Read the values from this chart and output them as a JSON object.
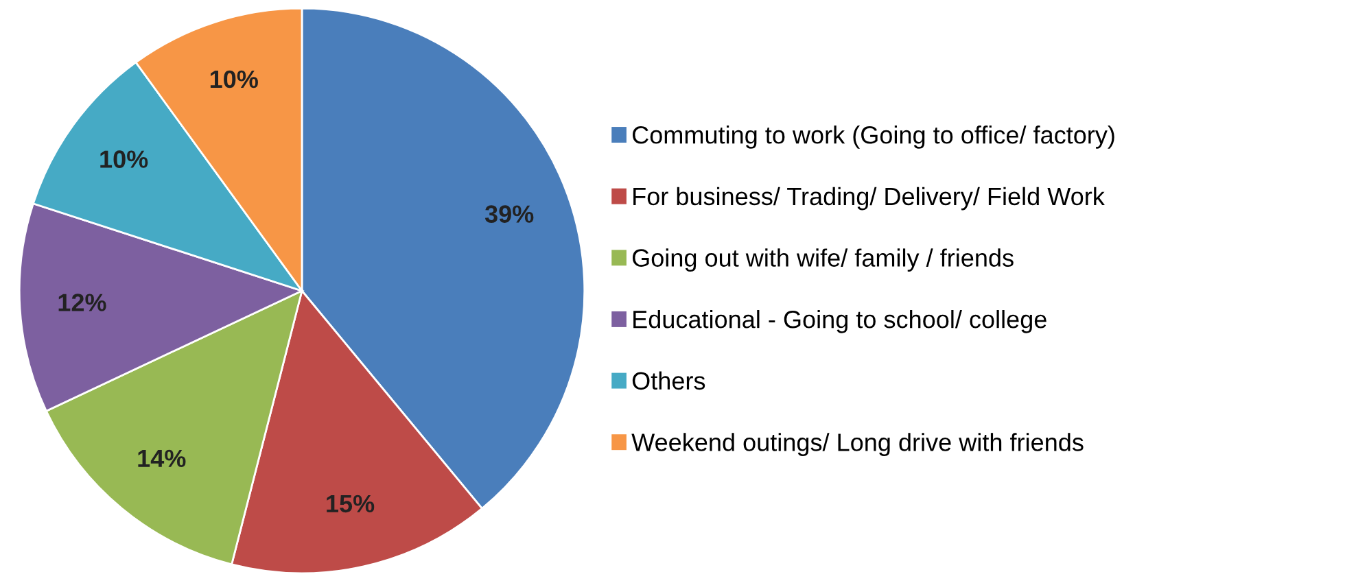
{
  "chart_data": {
    "type": "pie",
    "categories": [
      "Commuting to work (Going to office/ factory)",
      "For business/ Trading/ Delivery/ Field Work",
      "Going out with wife/ family / friends",
      "Educational - Going to school/ college",
      "Others",
      "Weekend outings/ Long drive with friends"
    ],
    "values": [
      39,
      15,
      14,
      12,
      10,
      10
    ],
    "colors": [
      "#4a7ebb",
      "#be4b48",
      "#98b954",
      "#7d60a0",
      "#46aac5",
      "#f79646"
    ],
    "value_labels": [
      "39%",
      "15%",
      "14%",
      "12%",
      "10%",
      "10%"
    ],
    "legend": "right"
  }
}
